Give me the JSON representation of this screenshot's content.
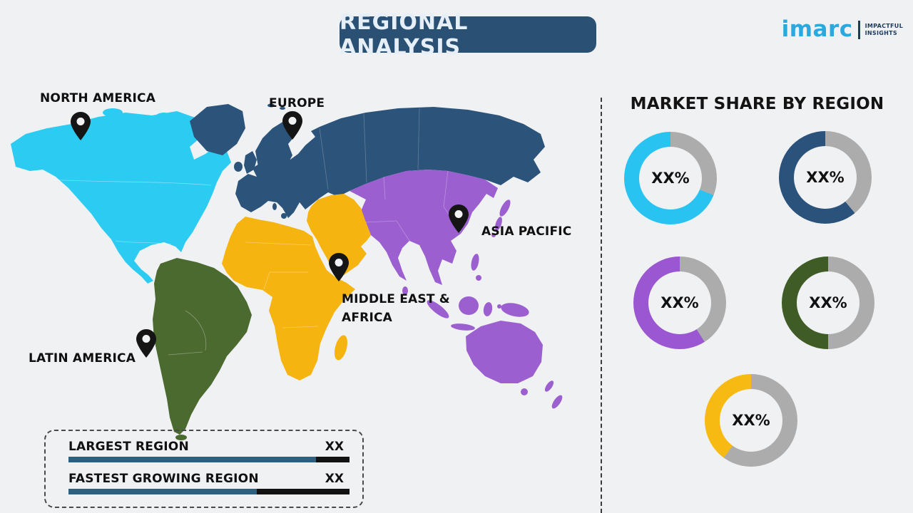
{
  "header": {
    "title": "REGIONAL ANALYSIS"
  },
  "logo": {
    "brand": "imarc",
    "brand_color": "#2AA9E1",
    "tagline": [
      "IMPACTFUL",
      "INSIGHTS"
    ],
    "tagline_color": "#1C3A5E"
  },
  "map": {
    "pin_color": "#151515",
    "regions": [
      {
        "name": "North America",
        "label": "NORTH AMERICA",
        "color": "#2BCBF2"
      },
      {
        "name": "Europe",
        "label": "EUROPE",
        "color": "#2C537A"
      },
      {
        "name": "Asia Pacific",
        "label": "ASIA PACIFIC",
        "color": "#9C5FD0"
      },
      {
        "name": "Middle East & Africa",
        "label_line1": "MIDDLE EAST &",
        "label_line2": "AFRICA",
        "color": "#F6B411"
      },
      {
        "name": "Latin America",
        "label": "LATIN AMERICA",
        "color": "#4A6A2F"
      }
    ]
  },
  "market_share": {
    "title": "MARKET SHARE BY REGION",
    "track_color": "#ACACAC",
    "donuts": [
      {
        "region": "North America",
        "value_label": "XX%",
        "color": "#29C3F1",
        "fill_pct": 69
      },
      {
        "region": "Europe",
        "value_label": "XX%",
        "color": "#2A527B",
        "fill_pct": 61
      },
      {
        "region": "Asia Pacific",
        "value_label": "XX%",
        "color": "#9B57D1",
        "fill_pct": 59
      },
      {
        "region": "Latin America",
        "value_label": "XX%",
        "color": "#3F5C27",
        "fill_pct": 50
      },
      {
        "region": "Middle East & Africa",
        "value_label": "XX%",
        "color": "#F7BA12",
        "fill_pct": 40
      }
    ]
  },
  "legend": {
    "bar_color": "#2D5F7E",
    "bar_track_color": "#121212",
    "rows": [
      {
        "label": "LARGEST REGION",
        "value": "XX",
        "bar_fill_pct": 88
      },
      {
        "label": "FASTEST GROWING REGION",
        "value": "XX",
        "bar_fill_pct": 67
      }
    ]
  },
  "chart_data": {
    "type": "pie",
    "title": "MARKET SHARE BY REGION",
    "series": [
      {
        "name": "North America",
        "label": "XX%",
        "ring_fill_pct": 69
      },
      {
        "name": "Europe",
        "label": "XX%",
        "ring_fill_pct": 61
      },
      {
        "name": "Asia Pacific",
        "label": "XX%",
        "ring_fill_pct": 59
      },
      {
        "name": "Latin America",
        "label": "XX%",
        "ring_fill_pct": 50
      },
      {
        "name": "Middle East & Africa",
        "label": "XX%",
        "ring_fill_pct": 40
      }
    ]
  }
}
